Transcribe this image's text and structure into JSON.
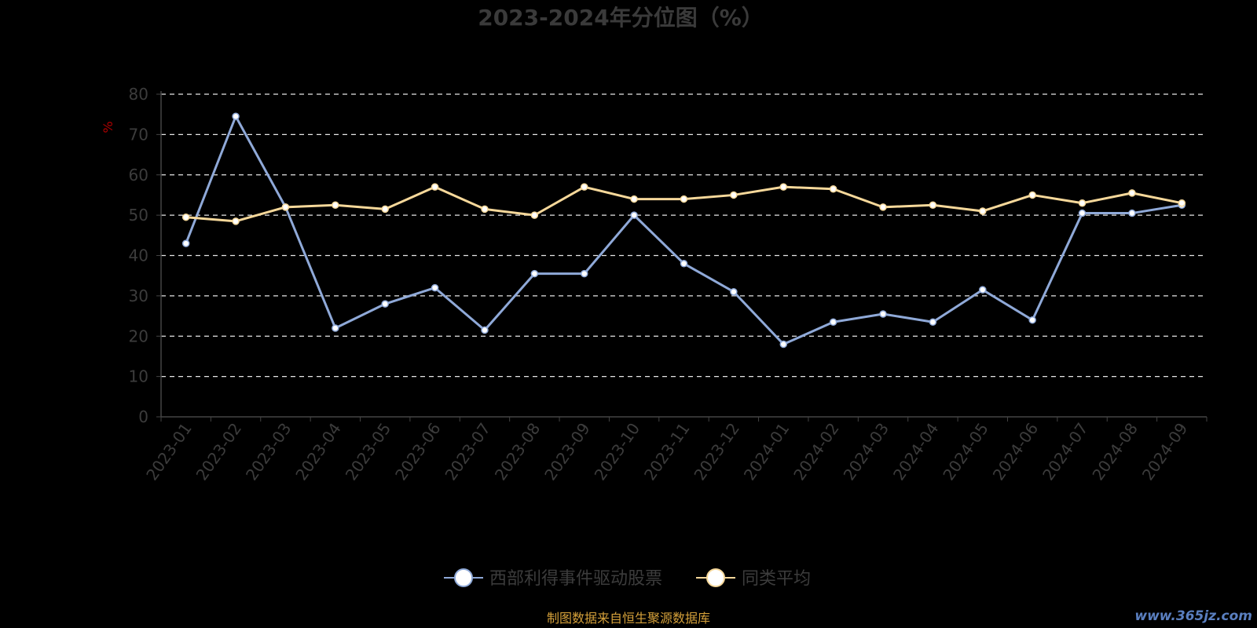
{
  "chart_data": {
    "type": "line",
    "title": "2023-2024年分位图（%）",
    "ylabel": "%",
    "xlabel": "",
    "ylim": [
      0,
      80
    ],
    "yticks": [
      0,
      10,
      20,
      30,
      40,
      50,
      60,
      70,
      80
    ],
    "grid": true,
    "legend_position": "bottom",
    "categories": [
      "2023-01",
      "2023-02",
      "2023-03",
      "2023-04",
      "2023-05",
      "2023-06",
      "2023-07",
      "2023-08",
      "2023-09",
      "2023-10",
      "2023-11",
      "2023-12",
      "2024-01",
      "2024-02",
      "2024-03",
      "2024-04",
      "2024-05",
      "2024-06",
      "2024-07",
      "2024-08",
      "2024-09"
    ],
    "series": [
      {
        "name": "西部利得事件驱动股票",
        "color": "#8fa9d8",
        "values": [
          43,
          74.5,
          52,
          22,
          28,
          32,
          21.5,
          35.5,
          35.5,
          50,
          38,
          31,
          18,
          23.5,
          25.5,
          23.5,
          31.5,
          24,
          50.5,
          50.5,
          52.5
        ]
      },
      {
        "name": "同类平均",
        "color": "#f6d89a",
        "values": [
          49.5,
          48.5,
          52,
          52.5,
          51.5,
          57,
          51.5,
          50,
          57,
          54,
          54,
          55,
          57,
          56.5,
          52,
          52.5,
          51,
          55,
          53,
          55.5,
          53
        ]
      }
    ]
  },
  "footer": {
    "source": "制图数据来自恒生聚源数据库",
    "watermark": "www.365jz.com"
  }
}
